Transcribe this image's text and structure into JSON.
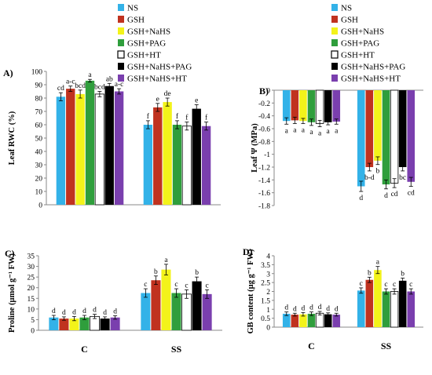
{
  "chart_data": [
    {
      "panel": "A)",
      "type": "bar",
      "ylabel": "Leaf RWC (%)",
      "ylim": [
        0,
        100
      ],
      "yticks": [
        0,
        10,
        20,
        30,
        40,
        50,
        60,
        70,
        80,
        90,
        100
      ],
      "categories": [
        "C",
        "SS"
      ],
      "show_category_labels": false,
      "legend": "top",
      "series": [
        {
          "name": "NS",
          "color": "#33b2e8",
          "values": [
            81,
            60
          ],
          "errors": [
            3,
            3
          ],
          "letters": [
            "cd",
            "f"
          ]
        },
        {
          "name": "GSH",
          "color": "#c0321f",
          "values": [
            87,
            73
          ],
          "errors": [
            2,
            3
          ],
          "letters": [
            "a-c",
            "e"
          ]
        },
        {
          "name": "GSH+NaHS",
          "color": "#f3f31a",
          "values": [
            83,
            77
          ],
          "errors": [
            3,
            3
          ],
          "letters": [
            "bcd",
            "de"
          ]
        },
        {
          "name": "GSH+PAG",
          "color": "#2f9e3c",
          "values": [
            93,
            60
          ],
          "errors": [
            1,
            3
          ],
          "letters": [
            "a",
            "f"
          ]
        },
        {
          "name": "GSH+HT",
          "color": "#ffffff",
          "values": [
            83,
            59
          ],
          "errors": [
            2,
            3
          ],
          "letters": [
            "bcd",
            "f"
          ]
        },
        {
          "name": "GSH+NaHS+PAG",
          "color": "#000000",
          "values": [
            89,
            72
          ],
          "errors": [
            2,
            3
          ],
          "letters": [
            "ab",
            "e"
          ]
        },
        {
          "name": "GSH+NaHS+HT",
          "color": "#7a3fae",
          "values": [
            85,
            59
          ],
          "errors": [
            2,
            3
          ],
          "letters": [
            "a-c",
            "f"
          ]
        }
      ]
    },
    {
      "panel": "B)",
      "type": "bar",
      "ylabel": "Leaf Ψ (MPa)",
      "ylim": [
        -1.8,
        0
      ],
      "yticks": [
        0,
        -0.2,
        -0.4,
        -0.6,
        -0.8,
        -1,
        -1.2,
        -1.4,
        -1.6,
        -1.8
      ],
      "categories": [
        "C",
        "SS"
      ],
      "show_category_labels": false,
      "legend": "top",
      "series": [
        {
          "name": "NS",
          "color": "#33b2e8",
          "values": [
            -0.48,
            -1.5
          ],
          "errors": [
            0.05,
            0.08
          ],
          "letters": [
            "a",
            "d"
          ]
        },
        {
          "name": "GSH",
          "color": "#c0321f",
          "values": [
            -0.47,
            -1.2
          ],
          "errors": [
            0.05,
            0.06
          ],
          "letters": [
            "a",
            "b-d"
          ]
        },
        {
          "name": "GSH+NaHS",
          "color": "#f3f31a",
          "values": [
            -0.48,
            -1.1
          ],
          "errors": [
            0.04,
            0.06
          ],
          "letters": [
            "a",
            "b"
          ]
        },
        {
          "name": "GSH+PAG",
          "color": "#2f9e3c",
          "values": [
            -0.5,
            -1.47
          ],
          "errors": [
            0.05,
            0.07
          ],
          "letters": [
            "a",
            "d"
          ]
        },
        {
          "name": "GSH+HT",
          "color": "#ffffff",
          "values": [
            -0.52,
            -1.45
          ],
          "errors": [
            0.05,
            0.07
          ],
          "letters": [
            "a",
            "cd"
          ]
        },
        {
          "name": "GSH+NaHS+PAG",
          "color": "#000000",
          "values": [
            -0.5,
            -1.2
          ],
          "errors": [
            0.04,
            0.06
          ],
          "letters": [
            "a",
            "bc"
          ]
        },
        {
          "name": "GSH+NaHS+HT",
          "color": "#7a3fae",
          "values": [
            -0.49,
            -1.43
          ],
          "errors": [
            0.04,
            0.07
          ],
          "letters": [
            "a",
            "cd"
          ]
        }
      ]
    },
    {
      "panel": "C)",
      "type": "bar",
      "ylabel": "Proline (μmol g⁻¹ FW)",
      "ylim": [
        0,
        35
      ],
      "yticks": [
        0,
        5,
        10,
        15,
        20,
        25,
        30,
        35
      ],
      "categories": [
        "C",
        "SS"
      ],
      "show_category_labels": true,
      "series": [
        {
          "name": "NS",
          "color": "#33b2e8",
          "values": [
            6,
            17.5
          ],
          "errors": [
            1,
            2
          ],
          "letters": [
            "d",
            "c"
          ]
        },
        {
          "name": "GSH",
          "color": "#c0321f",
          "values": [
            5.5,
            23.5
          ],
          "errors": [
            0.8,
            2
          ],
          "letters": [
            "d",
            "b"
          ]
        },
        {
          "name": "GSH+NaHS",
          "color": "#f3f31a",
          "values": [
            5.5,
            28.5
          ],
          "errors": [
            1,
            2.5
          ],
          "letters": [
            "d",
            "a"
          ]
        },
        {
          "name": "GSH+PAG",
          "color": "#2f9e3c",
          "values": [
            6,
            17.5
          ],
          "errors": [
            1,
            2
          ],
          "letters": [
            "d",
            "c"
          ]
        },
        {
          "name": "GSH+HT",
          "color": "#ffffff",
          "values": [
            6.5,
            17
          ],
          "errors": [
            1,
            2
          ],
          "letters": [
            "d",
            "c"
          ]
        },
        {
          "name": "GSH+NaHS+PAG",
          "color": "#000000",
          "values": [
            5.5,
            23
          ],
          "errors": [
            0.8,
            2
          ],
          "letters": [
            "d",
            "b"
          ]
        },
        {
          "name": "GSH+NaHS+HT",
          "color": "#7a3fae",
          "values": [
            6,
            17
          ],
          "errors": [
            0.8,
            2
          ],
          "letters": [
            "d",
            "c"
          ]
        }
      ]
    },
    {
      "panel": "D)",
      "type": "bar",
      "ylabel": "GB content (μg g⁻¹ FW)",
      "ylim": [
        0,
        4
      ],
      "yticks": [
        0,
        0.5,
        1,
        1.5,
        2,
        2.5,
        3,
        3.5,
        4
      ],
      "categories": [
        "C",
        "SS"
      ],
      "show_category_labels": true,
      "series": [
        {
          "name": "NS",
          "color": "#33b2e8",
          "values": [
            0.75,
            2.05
          ],
          "errors": [
            0.1,
            0.15
          ],
          "letters": [
            "d",
            "c"
          ]
        },
        {
          "name": "GSH",
          "color": "#c0321f",
          "values": [
            0.7,
            2.65
          ],
          "errors": [
            0.08,
            0.15
          ],
          "letters": [
            "d",
            "b"
          ]
        },
        {
          "name": "GSH+NaHS",
          "color": "#f3f31a",
          "values": [
            0.72,
            3.2
          ],
          "errors": [
            0.1,
            0.2
          ],
          "letters": [
            "d",
            "a"
          ]
        },
        {
          "name": "GSH+PAG",
          "color": "#2f9e3c",
          "values": [
            0.75,
            2.0
          ],
          "errors": [
            0.1,
            0.15
          ],
          "letters": [
            "d",
            "c"
          ]
        },
        {
          "name": "GSH+HT",
          "color": "#ffffff",
          "values": [
            0.78,
            2.0
          ],
          "errors": [
            0.1,
            0.15
          ],
          "letters": [
            "d",
            "c"
          ]
        },
        {
          "name": "GSH+NaHS+PAG",
          "color": "#000000",
          "values": [
            0.72,
            2.6
          ],
          "errors": [
            0.08,
            0.15
          ],
          "letters": [
            "d",
            "b"
          ]
        },
        {
          "name": "GSH+NaHS+HT",
          "color": "#7a3fae",
          "values": [
            0.7,
            2.0
          ],
          "errors": [
            0.08,
            0.15
          ],
          "letters": [
            "d",
            "c"
          ]
        }
      ]
    }
  ]
}
